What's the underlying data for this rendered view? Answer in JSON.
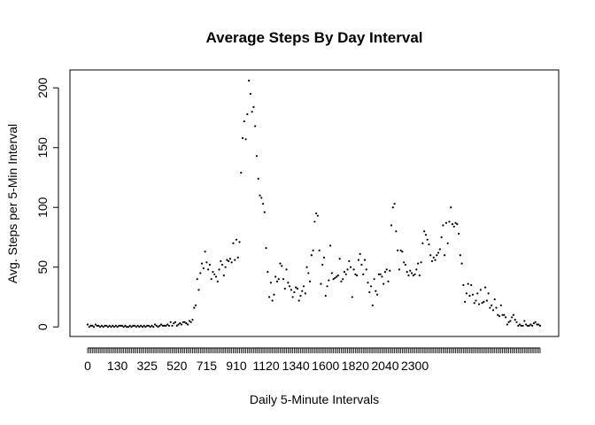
{
  "chart_data": {
    "type": "scatter",
    "title": "Average Steps By Day Interval",
    "xlabel": "Daily 5-Minute Intervals",
    "ylabel": "Avg. Steps per 5-Min Interval",
    "x_tick_labels": [
      "0",
      "130",
      "325",
      "520",
      "715",
      "910",
      "1120",
      "1340",
      "1600",
      "1820",
      "2040",
      "2300"
    ],
    "y_ticks": [
      0,
      50,
      100,
      150,
      200
    ],
    "ylim": [
      -8,
      215
    ],
    "grid": false,
    "point_color": "#000000",
    "x_label_step": 19,
    "series": [
      {
        "values": [
          2,
          0,
          1,
          1,
          0,
          2,
          1,
          1,
          0,
          1,
          0,
          1,
          1,
          0,
          1,
          0,
          1,
          0,
          1,
          0,
          1,
          1,
          1,
          0,
          1,
          0,
          0,
          1,
          0,
          1,
          1,
          0,
          1,
          0,
          1,
          0,
          1,
          0,
          1,
          1,
          0,
          1,
          0,
          2,
          1,
          0,
          1,
          2,
          1,
          1,
          1,
          2,
          1,
          4,
          1,
          3,
          4,
          1,
          2,
          3,
          2,
          4,
          4,
          3,
          2,
          5,
          4,
          6,
          16,
          18,
          40,
          31,
          45,
          53,
          49,
          63,
          54,
          48,
          52,
          40,
          46,
          44,
          42,
          38,
          48,
          55,
          52,
          43,
          50,
          56,
          55,
          57,
          54,
          70,
          56,
          73,
          58,
          71,
          129,
          158,
          172,
          157,
          178,
          206,
          195,
          180,
          184,
          168,
          143,
          124,
          110,
          108,
          103,
          96,
          66,
          46,
          25,
          37,
          22,
          27,
          42,
          38,
          40,
          53,
          51,
          40,
          32,
          48,
          37,
          34,
          31,
          25,
          29,
          33,
          32,
          22,
          26,
          30,
          34,
          28,
          50,
          45,
          38,
          60,
          64,
          88,
          95,
          93,
          64,
          36,
          52,
          58,
          26,
          34,
          39,
          68,
          45,
          40,
          41,
          42,
          43,
          57,
          38,
          40,
          46,
          44,
          48,
          55,
          50,
          25,
          48,
          44,
          43,
          56,
          61,
          52,
          44,
          56,
          48,
          37,
          29,
          34,
          18,
          40,
          30,
          27,
          44,
          44,
          42,
          36,
          46,
          48,
          38,
          47,
          85,
          100,
          103,
          80,
          64,
          48,
          64,
          63,
          54,
          52,
          46,
          43,
          47,
          45,
          43,
          44,
          48,
          53,
          43,
          54,
          70,
          80,
          77,
          73,
          69,
          60,
          55,
          58,
          56,
          60,
          62,
          65,
          75,
          85,
          60,
          87,
          70,
          88,
          100,
          86,
          84,
          87,
          86,
          78,
          60,
          53,
          35,
          21,
          28,
          36,
          26,
          35,
          27,
          20,
          22,
          28,
          19,
          31,
          20,
          21,
          33,
          22,
          28,
          16,
          18,
          14,
          23,
          16,
          10,
          9,
          18,
          10,
          10,
          8,
          2,
          4,
          5,
          8,
          10,
          6,
          4,
          1,
          2,
          1,
          1,
          5,
          2,
          1,
          1,
          2,
          1,
          3,
          4,
          2,
          2,
          1
        ]
      }
    ]
  }
}
